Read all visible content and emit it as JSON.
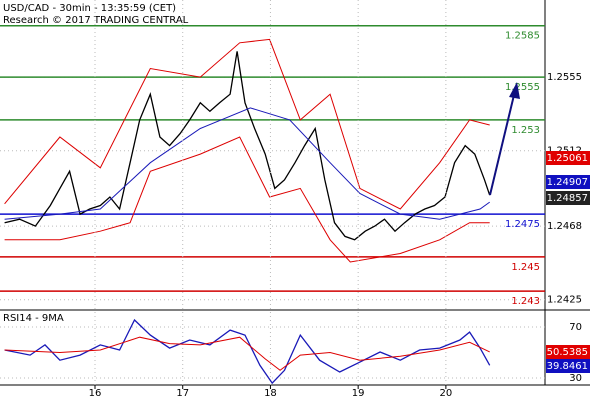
{
  "chart_data": [
    {
      "type": "line",
      "title": "USD/CAD - 30min - 13:35:59 (CET)",
      "subtitle": "Research © 2017 TRADING CENTRAL",
      "xlim": [
        14.917,
        21.13
      ],
      "ylim": [
        1.2419,
        1.26
      ],
      "yticks": [
        1.2555,
        1.2512,
        1.2468,
        1.2425
      ],
      "grid": true,
      "levels": [
        {
          "value": 1.2585,
          "color": "#2e8b2e"
        },
        {
          "value": 1.2555,
          "color": "#2e8b2e"
        },
        {
          "value": 1.253,
          "color": "#2e8b2e"
        },
        {
          "value": 1.2475,
          "color": "#1010d0"
        },
        {
          "value": 1.245,
          "color": "#d00000"
        },
        {
          "value": 1.243,
          "color": "#d00000"
        }
      ],
      "last_values": [
        {
          "value": 1.25061,
          "color": "#e00000"
        },
        {
          "value": 1.24907,
          "color": "#1010c0"
        },
        {
          "value": 1.24857,
          "color": "#222222"
        }
      ],
      "series": [
        {
          "color": "#000000",
          "x": [
            14.97,
            15.14,
            15.32,
            15.49,
            15.6,
            15.71,
            15.83,
            15.94,
            16.06,
            16.17,
            16.28,
            16.4,
            16.51,
            16.63,
            16.74,
            16.85,
            16.97,
            17.08,
            17.2,
            17.31,
            17.42,
            17.54,
            17.62,
            17.71,
            17.82,
            17.94,
            18.05,
            18.16,
            18.28,
            18.39,
            18.51,
            18.62,
            18.73,
            18.85,
            18.96,
            19.08,
            19.19,
            19.3,
            19.42,
            19.53,
            19.65,
            19.76,
            19.87,
            19.99,
            20.1,
            20.22,
            20.33,
            20.44,
            20.5
          ],
          "values": [
            1.247,
            1.2472,
            1.2468,
            1.248,
            1.249,
            1.25,
            1.2475,
            1.2478,
            1.248,
            1.2485,
            1.2478,
            1.2505,
            1.253,
            1.2545,
            1.252,
            1.2515,
            1.2522,
            1.253,
            1.254,
            1.2535,
            1.254,
            1.2545,
            1.257,
            1.254,
            1.2525,
            1.251,
            1.249,
            1.2495,
            1.2505,
            1.2515,
            1.2525,
            1.2495,
            1.247,
            1.2462,
            1.246,
            1.2465,
            1.2468,
            1.2472,
            1.2465,
            1.247,
            1.2475,
            1.2478,
            1.248,
            1.2485,
            1.2505,
            1.2515,
            1.251,
            1.2495,
            1.2486
          ]
        },
        {
          "color": "#1a1ab8",
          "x": [
            14.97,
            15.6,
            16.06,
            16.63,
            17.2,
            17.77,
            18.22,
            18.68,
            19.02,
            19.48,
            19.93,
            20.39,
            20.5
          ],
          "values": [
            1.2472,
            1.2475,
            1.2478,
            1.2505,
            1.2525,
            1.2537,
            1.253,
            1.2505,
            1.2487,
            1.2475,
            1.2472,
            1.2478,
            1.2482
          ]
        },
        {
          "color": "#dd0000",
          "x": [
            14.97,
            15.6,
            16.06,
            16.63,
            17.2,
            17.65,
            17.99,
            18.34,
            18.68,
            19.02,
            19.48,
            19.93,
            20.27,
            20.5
          ],
          "values": [
            1.2481,
            1.252,
            1.2502,
            1.256,
            1.2555,
            1.2575,
            1.2577,
            1.253,
            1.2545,
            1.249,
            1.2478,
            1.2505,
            1.253,
            1.2527
          ]
        },
        {
          "color": "#dd0000",
          "x": [
            14.97,
            15.6,
            16.06,
            16.4,
            16.63,
            17.2,
            17.65,
            17.99,
            18.34,
            18.68,
            18.91,
            19.48,
            19.93,
            20.27,
            20.5
          ],
          "values": [
            1.246,
            1.246,
            1.2465,
            1.247,
            1.25,
            1.251,
            1.252,
            1.2485,
            1.249,
            1.246,
            1.2447,
            1.2452,
            1.246,
            1.247,
            1.247
          ]
        }
      ]
    },
    {
      "type": "line",
      "title": "RSI14 - 9MA",
      "xlim": [
        14.917,
        21.13
      ],
      "ylim": [
        24.5,
        81.8
      ],
      "yticks": [
        70,
        30
      ],
      "xticks": [
        16,
        17,
        18,
        19,
        20
      ],
      "grid": true,
      "last_values": [
        {
          "value": 50.5385,
          "color": "#e00000"
        },
        {
          "value": 39.8461,
          "color": "#1010c0"
        }
      ],
      "series": [
        {
          "color": "#1a1ab8",
          "x": [
            14.97,
            15.26,
            15.43,
            15.6,
            15.83,
            16.06,
            16.28,
            16.45,
            16.63,
            16.85,
            17.08,
            17.31,
            17.54,
            17.71,
            17.88,
            18.02,
            18.16,
            18.34,
            18.56,
            18.79,
            19.02,
            19.25,
            19.48,
            19.7,
            19.93,
            20.16,
            20.27,
            20.39,
            20.5
          ],
          "values": [
            52,
            48,
            56,
            44,
            48,
            56,
            52,
            75.5,
            63.7,
            53.5,
            59.8,
            56,
            67.6,
            63.7,
            40,
            26,
            36,
            63.7,
            44,
            34.7,
            42.5,
            50.4,
            44,
            52,
            53.5,
            59.8,
            66,
            53.5,
            40
          ]
        },
        {
          "color": "#dd0000",
          "x": [
            14.97,
            15.6,
            16.06,
            16.51,
            16.85,
            17.2,
            17.65,
            17.94,
            18.11,
            18.34,
            18.68,
            19.02,
            19.48,
            19.93,
            20.27,
            20.5
          ],
          "values": [
            52,
            50,
            52,
            62,
            57,
            56,
            62,
            45,
            36,
            48,
            50,
            44,
            47,
            52,
            58,
            50.5
          ]
        }
      ]
    }
  ]
}
